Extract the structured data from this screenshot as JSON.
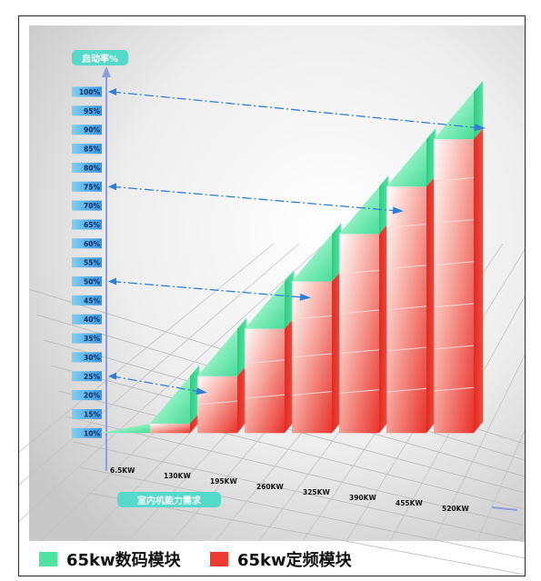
{
  "chart_data": {
    "type": "bar",
    "stacked": true,
    "title": "",
    "ylabel": "启动率%",
    "xlabel": "室内机能力需求",
    "ylim": [
      0,
      100
    ],
    "y_ticks": [
      "10%",
      "15%",
      "20%",
      "25%",
      "30%",
      "35%",
      "40%",
      "45%",
      "50%",
      "55%",
      "60%",
      "65%",
      "70%",
      "75%",
      "80%",
      "85%",
      "90%",
      "95%",
      "100%"
    ],
    "categories": [
      "6.5KW",
      "130KW",
      "195KW",
      "260KW",
      "325KW",
      "390KW",
      "455KW",
      "520KW"
    ],
    "series": [
      {
        "name": "65kw定频模块",
        "color": "#ee3b32",
        "values": [
          0,
          12.5,
          25,
          37.5,
          50,
          62.5,
          75,
          87.5
        ]
      },
      {
        "name": "65kw数码模块",
        "color": "#4fe3a0",
        "values": [
          12.5,
          12.5,
          12.5,
          12.5,
          12.5,
          12.5,
          12.5,
          12.5
        ]
      }
    ],
    "reference_levels": [
      100,
      75,
      50,
      25
    ],
    "grid": true,
    "legend": "bottom-left"
  },
  "colors": {
    "digital": "#4fe3a0",
    "fixed": "#ee3b32",
    "label_badge": "#55d9c8",
    "axis": "#8c9ede",
    "guide": "#2f7fd6"
  }
}
